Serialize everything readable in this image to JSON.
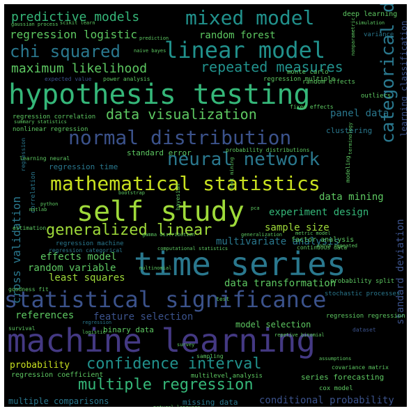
{
  "colors": {
    "background": "#000000",
    "frame": "#ffffff",
    "palette": [
      "#5ec962",
      "#9fda3a",
      "#35b779",
      "#21918c",
      "#2a788e",
      "#3b528b",
      "#443983",
      "#c8e020"
    ]
  },
  "words": [
    {
      "text": "time series",
      "color": "#2a788e"
    },
    {
      "text": "machine learning",
      "color": "#443983"
    },
    {
      "text": "hypothesis testing",
      "color": "#35b779"
    },
    {
      "text": "self study",
      "color": "#9fda3a"
    },
    {
      "text": "statistical significance",
      "color": "#3b528b"
    },
    {
      "text": "linear model",
      "color": "#21918c"
    },
    {
      "text": "mixed model",
      "color": "#21918c"
    },
    {
      "text": "mathematical statistics",
      "color": "#c8e020"
    },
    {
      "text": "normal distribution",
      "color": "#3b528b"
    },
    {
      "text": "neural network",
      "color": "#2a788e"
    },
    {
      "text": "categorical data",
      "color": "#2a788e"
    },
    {
      "text": "confidence interval",
      "color": "#21918c"
    },
    {
      "text": "multiple regression",
      "color": "#35b779"
    },
    {
      "text": "generalized linear",
      "color": "#9fda3a"
    },
    {
      "text": "data visualization",
      "color": "#5ec962"
    },
    {
      "text": "repeated measures",
      "color": "#21918c"
    },
    {
      "text": "predictive models",
      "color": "#35b779"
    },
    {
      "text": "chi squared",
      "color": "#2a788e"
    },
    {
      "text": "maximum likelihood",
      "color": "#5ec962"
    },
    {
      "text": "regression logistic",
      "color": "#5ec962"
    },
    {
      "text": "random forest",
      "color": "#5ec962"
    },
    {
      "text": "cross validation",
      "color": "#2a788e"
    },
    {
      "text": "panel data",
      "color": "#2a788e"
    },
    {
      "text": "data mining",
      "color": "#5ec962"
    },
    {
      "text": "experiment design",
      "color": "#35b779"
    },
    {
      "text": "sample size",
      "color": "#9fda3a"
    },
    {
      "text": "multivariate analysis",
      "color": "#2a788e"
    },
    {
      "text": "effects model",
      "color": "#5ec962"
    },
    {
      "text": "random variable",
      "color": "#5ec962"
    },
    {
      "text": "least squares",
      "color": "#9fda3a"
    },
    {
      "text": "data transformation",
      "color": "#5ec962"
    },
    {
      "text": "feature selection",
      "color": "#3b528b"
    },
    {
      "text": "references",
      "color": "#5ec962"
    },
    {
      "text": "model selection",
      "color": "#5ec962"
    },
    {
      "text": "probability",
      "color": "#c8e020"
    },
    {
      "text": "multiple comparisons",
      "color": "#2a788e"
    },
    {
      "text": "missing data",
      "color": "#2a788e"
    },
    {
      "text": "conditional probability",
      "color": "#3b528b"
    },
    {
      "text": "standard deviation",
      "color": "#3b528b"
    },
    {
      "text": "learning classification",
      "color": "#3b528b"
    },
    {
      "text": "series forecasting",
      "color": "#5ec962"
    },
    {
      "text": "binary data",
      "color": "#5ec962"
    },
    {
      "text": "standard error",
      "color": "#5ec962"
    },
    {
      "text": "regression time",
      "color": "#2a788e"
    },
    {
      "text": "clustering",
      "color": "#2a788e"
    },
    {
      "text": "deep learning",
      "color": "#5ec962"
    },
    {
      "text": "regression correlation",
      "color": "#5ec962"
    },
    {
      "text": "nonlinear regression",
      "color": "#5ec962"
    },
    {
      "text": "regression multiple",
      "color": "#5ec962"
    },
    {
      "text": "monte carlo",
      "color": "#5ec962"
    },
    {
      "text": "random effects",
      "color": "#5ec962"
    },
    {
      "text": "expected value",
      "color": "#3b528b"
    },
    {
      "text": "power analysis",
      "color": "#5ec962"
    },
    {
      "text": "variance",
      "color": "#2a788e"
    },
    {
      "text": "outliers",
      "color": "#5ec962"
    },
    {
      "text": "fixed effects",
      "color": "#5ec962"
    },
    {
      "text": "probability distributions",
      "color": "#5ec962"
    },
    {
      "text": "regression machine",
      "color": "#2a788e"
    },
    {
      "text": "regression categorical",
      "color": "#2a788e"
    },
    {
      "text": "factor analysis",
      "color": "#5ec962"
    },
    {
      "text": "continuous data",
      "color": "#5ec962"
    },
    {
      "text": "probability split",
      "color": "#5ec962"
    },
    {
      "text": "stochastic processes",
      "color": "#2a788e"
    },
    {
      "text": "goodness fit",
      "color": "#5ec962"
    },
    {
      "text": "regression coefficient",
      "color": "#5ec962"
    },
    {
      "text": "multilevel analysis",
      "color": "#5ec962"
    },
    {
      "text": "cox model",
      "color": "#5ec962"
    },
    {
      "text": "covariance matrix",
      "color": "#5ec962"
    },
    {
      "text": "regression regression",
      "color": "#5ec962"
    },
    {
      "text": "dataset",
      "color": "#3b528b"
    },
    {
      "text": "survival",
      "color": "#5ec962"
    },
    {
      "text": "sampling",
      "color": "#5ec962"
    },
    {
      "text": "bootstrap",
      "color": "#5ec962"
    },
    {
      "text": "learning neural",
      "color": "#5ec962"
    },
    {
      "text": "correlation",
      "color": "#2a788e"
    },
    {
      "text": "regression",
      "color": "#2a788e"
    },
    {
      "text": "matlab",
      "color": "#5ec962"
    },
    {
      "text": "python",
      "color": "#5ec962"
    },
    {
      "text": "estimation",
      "color": "#5ec962"
    },
    {
      "text": "pca",
      "color": "#5ec962"
    },
    {
      "text": "bayesian",
      "color": "#5ec962"
    },
    {
      "text": "modeling",
      "color": "#5ec962"
    },
    {
      "text": "terminology",
      "color": "#5ec962"
    },
    {
      "text": "test",
      "color": "#5ec962"
    },
    {
      "text": "inference",
      "color": "#5ec962"
    },
    {
      "text": "natural language",
      "color": "#5ec962"
    },
    {
      "text": "scikit learn",
      "color": "#5ec962"
    },
    {
      "text": "prediction",
      "color": "#5ec962"
    },
    {
      "text": "naive bayes",
      "color": "#5ec962"
    },
    {
      "text": "gaussian process",
      "color": "#5ec962"
    },
    {
      "text": "summary statistics",
      "color": "#5ec962"
    },
    {
      "text": "gamma distribution",
      "color": "#5ec962"
    },
    {
      "text": "multinomial",
      "color": "#5ec962"
    },
    {
      "text": "anova repeated",
      "color": "#5ec962"
    },
    {
      "text": "computational statistics",
      "color": "#5ec962"
    },
    {
      "text": "repetive binomial",
      "color": "#5ec962"
    },
    {
      "text": "assumptions",
      "color": "#5ec962"
    },
    {
      "text": "logistic",
      "color": "#5ec962"
    },
    {
      "text": "text mining",
      "color": "#5ec962"
    },
    {
      "text": "regression",
      "color": "#2a788e"
    },
    {
      "text": "nonparametric",
      "color": "#5ec962"
    },
    {
      "text": "survey",
      "color": "#5ec962"
    },
    {
      "text": "generalization",
      "color": "#5ec962"
    },
    {
      "text": "metric model",
      "color": "#5ec962"
    },
    {
      "text": "simulation",
      "color": "#5ec962"
    }
  ]
}
